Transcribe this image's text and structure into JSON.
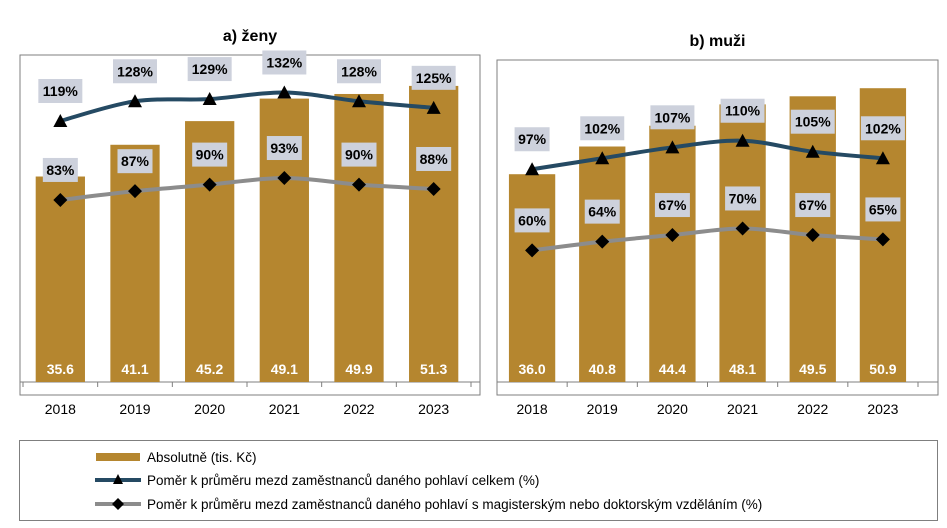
{
  "chart_data": [
    {
      "type": "bar+line",
      "title": "a) ženy",
      "categories": [
        "2018",
        "2019",
        "2020",
        "2021",
        "2022",
        "2023"
      ],
      "series": [
        {
          "name": "Absolutně (tis. Kč)",
          "type": "bar",
          "values": [
            35.6,
            41.1,
            45.2,
            49.1,
            49.9,
            51.3
          ],
          "value_labels": [
            "35.6",
            "41.1",
            "45.2",
            "49.1",
            "49.9",
            "51.3"
          ]
        },
        {
          "name": "Poměr k průměru mezd zaměstnanců daného pohlaví celkem (%)",
          "type": "line",
          "values": [
            119,
            128,
            129,
            132,
            128,
            125
          ],
          "value_labels": [
            "119%",
            "128%",
            "129%",
            "132%",
            "128%",
            "125%"
          ]
        },
        {
          "name": "Poměr k průměru mezd zaměstnanců daného pohlaví s magisterským nebo doktorským vzděláním (%)",
          "type": "line",
          "values": [
            83,
            87,
            90,
            93,
            90,
            88
          ],
          "value_labels": [
            "83%",
            "87%",
            "90%",
            "93%",
            "90%",
            "88%"
          ]
        }
      ],
      "bar_ylim": [
        0,
        57
      ],
      "line_ylim": [
        0,
        150
      ]
    },
    {
      "type": "bar+line",
      "title": "b) muži",
      "categories": [
        "2018",
        "2019",
        "2020",
        "2021",
        "2022",
        "2023"
      ],
      "series": [
        {
          "name": "Absolutně (tis. Kč)",
          "type": "bar",
          "values": [
            36.0,
            40.8,
            44.4,
            48.1,
            49.5,
            50.9
          ],
          "value_labels": [
            "36.0",
            "40.8",
            "44.4",
            "48.1",
            "49.5",
            "50.9"
          ]
        },
        {
          "name": "Poměr k průměru mezd zaměstnanců daného pohlaví celkem (%)",
          "type": "line",
          "values": [
            97,
            102,
            107,
            110,
            105,
            102
          ],
          "value_labels": [
            "97%",
            "102%",
            "107%",
            "110%",
            "105%",
            "102%"
          ]
        },
        {
          "name": "Poměr k průměru mezd zaměstnanců daného pohlaví s magisterským nebo doktorským vzděláním (%)",
          "type": "line",
          "values": [
            60,
            64,
            67,
            70,
            67,
            65
          ],
          "value_labels": [
            "60%",
            "64%",
            "67%",
            "70%",
            "67%",
            "65%"
          ]
        }
      ],
      "bar_ylim": [
        0,
        57
      ],
      "line_ylim": [
        0,
        150
      ]
    }
  ],
  "legend": [
    {
      "label": "Absolutně (tis. Kč)",
      "kind": "bar"
    },
    {
      "label": "Poměr k průměru mezd zaměstnanců daného pohlaví celkem (%)",
      "kind": "line-triangle"
    },
    {
      "label": "Poměr k průměru mezd zaměstnanců daného pohlaví s magisterským nebo doktorským vzděláním (%)",
      "kind": "line-diamond"
    }
  ],
  "colors": {
    "bar": "#b5862f",
    "line_total": "#254a63",
    "line_degree": "#8c8c8c",
    "label_box": "#cdd1dc",
    "axis": "#7f7f7f"
  }
}
